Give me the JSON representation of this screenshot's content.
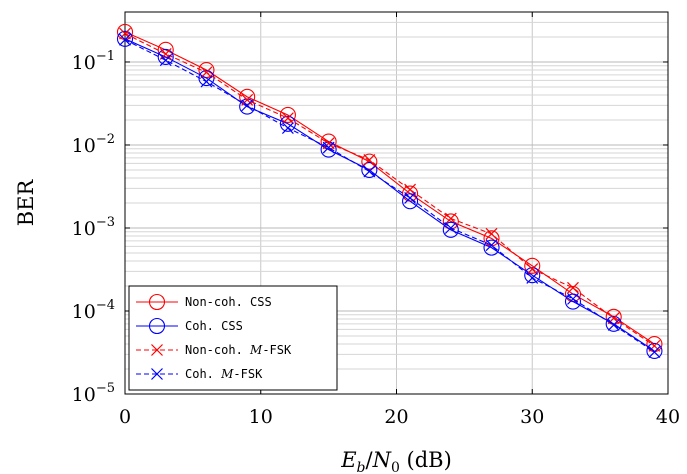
{
  "chart_data": {
    "type": "line",
    "xlabel": "E_b/N_0 (dB)",
    "ylabel": "BER",
    "x_ticks": [
      0,
      10,
      20,
      30,
      40
    ],
    "y_ticks": [
      1e-05,
      0.0001,
      0.001,
      0.01,
      0.1
    ],
    "xlim": [
      0,
      40
    ],
    "ylim": [
      1e-05,
      0.4
    ],
    "log_y": true,
    "grid": true,
    "legend_position": "bottom-left",
    "x": [
      0,
      3,
      6,
      9,
      12,
      15,
      18,
      21,
      24,
      27,
      30,
      33,
      36,
      39
    ],
    "series": [
      {
        "name": "Non-coh. CSS",
        "color": "#ff0000",
        "line": "solid",
        "marker": "circle",
        "values": [
          0.23,
          0.14,
          0.08,
          0.038,
          0.023,
          0.011,
          0.0063,
          0.0026,
          0.0012,
          0.00075,
          0.00035,
          0.00016,
          8.5e-05,
          4e-05
        ]
      },
      {
        "name": "Coh. CSS",
        "color": "#0000ff",
        "line": "solid",
        "marker": "circle",
        "values": [
          0.19,
          0.115,
          0.064,
          0.029,
          0.018,
          0.0088,
          0.005,
          0.0021,
          0.00095,
          0.00058,
          0.00027,
          0.00013,
          7e-05,
          3.3e-05
        ]
      },
      {
        "name": "Non-coh. M-FSK",
        "color": "#ff0000",
        "line": "dashed",
        "marker": "x",
        "values": [
          0.22,
          0.125,
          0.075,
          0.035,
          0.021,
          0.0105,
          0.0066,
          0.0029,
          0.0013,
          0.00085,
          0.00032,
          0.00019,
          8.2e-05,
          3.8e-05
        ]
      },
      {
        "name": "Coh. M-FSK",
        "color": "#0000ff",
        "line": "dashed",
        "marker": "x",
        "values": [
          0.185,
          0.105,
          0.058,
          0.03,
          0.016,
          0.0093,
          0.0048,
          0.0023,
          0.001,
          0.00062,
          0.00025,
          0.00014,
          6.8e-05,
          3.2e-05
        ]
      }
    ]
  }
}
